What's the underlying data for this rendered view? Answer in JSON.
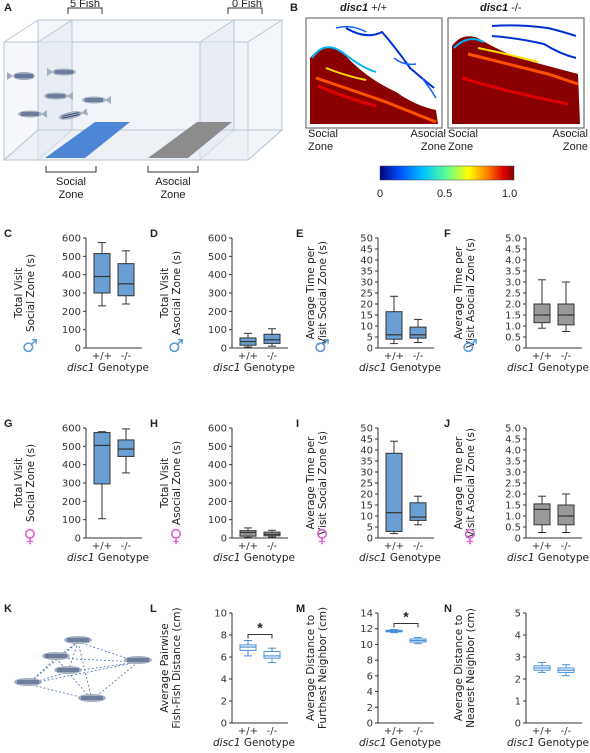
{
  "panels": {
    "A": "A",
    "B": "B",
    "C": "C",
    "D": "D",
    "E": "E",
    "F": "F",
    "G": "G",
    "H": "H",
    "I": "I",
    "J": "J",
    "K": "K",
    "L": "L",
    "M": "M",
    "N": "N"
  },
  "tank": {
    "five_fish": "5 Fish",
    "zero_fish": "0 Fish",
    "social_zone": "Social\nZone",
    "asocial_zone": "Asocial\nZone"
  },
  "heatmap": {
    "wt_title_gene": "disc1",
    "wt_title_geno": " +/+",
    "mut_title_gene": "disc1",
    "mut_title_geno": " -/-",
    "social": "Social\nZone",
    "asocial": "Asocial\nZone",
    "scale_ticks": [
      "0",
      "0.5",
      "1.0"
    ],
    "colors": [
      "#00007f",
      "#0050ff",
      "#00c8ff",
      "#60ff90",
      "#ffff00",
      "#ff8000",
      "#e00000",
      "#7f0000"
    ]
  },
  "xaxis_label_gene": "disc1",
  "xaxis_label_rest": " Genotype",
  "genotypes": [
    "+/+",
    "-/-"
  ],
  "male_symbol": "♂",
  "female_symbol": "♀",
  "male_color": "#5b9bd5",
  "female_color": "#e05fd6",
  "sig_marker": "*",
  "chart_data": [
    {
      "id": "C",
      "type": "box",
      "ylabel": "Total Visit\nSocial Zone (s)",
      "ylim": [
        0,
        600
      ],
      "yticks": [
        0,
        100,
        200,
        300,
        400,
        500,
        600
      ],
      "sex": "male",
      "color": "#6a9fd3",
      "boxes": [
        {
          "whislo": 230,
          "q1": 300,
          "med": 390,
          "q3": 515,
          "whishi": 575
        },
        {
          "whislo": 240,
          "q1": 285,
          "med": 350,
          "q3": 460,
          "whishi": 530
        }
      ]
    },
    {
      "id": "D",
      "type": "box",
      "ylabel": "Total Visit\nAsocial Zone (s)",
      "ylim": [
        0,
        600
      ],
      "yticks": [
        0,
        100,
        200,
        300,
        400,
        500,
        600
      ],
      "sex": "male",
      "color": "#6a9fd3",
      "boxes": [
        {
          "whislo": 5,
          "q1": 15,
          "med": 35,
          "q3": 55,
          "whishi": 80
        },
        {
          "whislo": 10,
          "q1": 25,
          "med": 45,
          "q3": 75,
          "whishi": 105
        }
      ]
    },
    {
      "id": "E",
      "type": "box",
      "ylabel": "Average Time per\nVisit Social Zone (s)",
      "ylim": [
        0,
        50
      ],
      "yticks": [
        0,
        5,
        10,
        15,
        20,
        25,
        30,
        35,
        40,
        45,
        50
      ],
      "sex": "male",
      "color": "#6a9fd3",
      "boxes": [
        {
          "whislo": 2,
          "q1": 4,
          "med": 6,
          "q3": 16.5,
          "whishi": 23.5
        },
        {
          "whislo": 2.5,
          "q1": 4.5,
          "med": 6,
          "q3": 9.5,
          "whishi": 13
        }
      ]
    },
    {
      "id": "F",
      "type": "box",
      "ylabel": "Average Time per\nVisit Asocial Zone (s)",
      "ylim": [
        0,
        5
      ],
      "yticks": [
        "0",
        "0.5",
        "1.0",
        "1.5",
        "2.0",
        "2.5",
        "3.0",
        "3.5",
        "4.0",
        "4.5",
        "5.0"
      ],
      "sex": "male",
      "color": "#999999",
      "boxes": [
        {
          "whislo": 0.9,
          "q1": 1.15,
          "med": 1.5,
          "q3": 2.0,
          "whishi": 3.1
        },
        {
          "whislo": 0.75,
          "q1": 1.05,
          "med": 1.5,
          "q3": 2.0,
          "whishi": 3.0
        }
      ]
    },
    {
      "id": "G",
      "type": "box",
      "ylabel": "Total Visit\nSocial Zone (s)",
      "ylim": [
        0,
        600
      ],
      "yticks": [
        0,
        100,
        200,
        300,
        400,
        500,
        600
      ],
      "sex": "female",
      "color": "#6a9fd3",
      "boxes": [
        {
          "whislo": 105,
          "q1": 295,
          "med": 505,
          "q3": 575,
          "whishi": 580
        },
        {
          "whislo": 355,
          "q1": 445,
          "med": 485,
          "q3": 535,
          "whishi": 595
        }
      ]
    },
    {
      "id": "H",
      "type": "box",
      "ylabel": "Total Visit\nAsocial Zone (s)",
      "ylim": [
        0,
        600
      ],
      "yticks": [
        0,
        100,
        200,
        300,
        400,
        500,
        600
      ],
      "sex": "female",
      "color": "#999999",
      "boxes": [
        {
          "whislo": 3,
          "q1": 10,
          "med": 30,
          "q3": 40,
          "whishi": 55
        },
        {
          "whislo": 5,
          "q1": 12,
          "med": 20,
          "q3": 32,
          "whishi": 42
        }
      ]
    },
    {
      "id": "I",
      "type": "box",
      "ylabel": "Average Time per\nVisit Social Zone (s)",
      "ylim": [
        0,
        50
      ],
      "yticks": [
        0,
        5,
        10,
        15,
        20,
        25,
        30,
        35,
        40,
        45,
        50
      ],
      "sex": "female",
      "color": "#6a9fd3",
      "boxes": [
        {
          "whislo": 2,
          "q1": 3,
          "med": 11.5,
          "q3": 38.5,
          "whishi": 44
        },
        {
          "whislo": 6,
          "q1": 8,
          "med": 9.5,
          "q3": 16,
          "whishi": 19
        }
      ]
    },
    {
      "id": "J",
      "type": "box",
      "ylabel": "Average Time per\nVisit Asocial Zone (s)",
      "ylim": [
        0,
        5
      ],
      "yticks": [
        "0",
        "0.5",
        "1.0",
        "1.5",
        "2.0",
        "2.5",
        "3.0",
        "3.5",
        "4.0",
        "4.5",
        "5.0"
      ],
      "sex": "female",
      "color": "#999999",
      "boxes": [
        {
          "whislo": 0.25,
          "q1": 0.6,
          "med": 1.3,
          "q3": 1.55,
          "whishi": 1.9
        },
        {
          "whislo": 0.25,
          "q1": 0.6,
          "med": 1.0,
          "q3": 1.5,
          "whishi": 2.0
        }
      ]
    },
    {
      "id": "L",
      "type": "box",
      "ylabel": "Average Pairwise\nFish-Fish Distance (cm)",
      "ylim": [
        0,
        10
      ],
      "yticks": [
        0,
        2,
        4,
        6,
        8,
        10
      ],
      "sex": "none",
      "color": "#ffffff",
      "edge": "#4a90d9",
      "boxes": [
        {
          "whislo": 6.1,
          "q1": 6.6,
          "med": 6.9,
          "q3": 7.1,
          "whishi": 7.5
        },
        {
          "whislo": 5.5,
          "q1": 5.9,
          "med": 6.1,
          "q3": 6.5,
          "whishi": 6.8
        }
      ],
      "sig": true
    },
    {
      "id": "M",
      "type": "box",
      "ylabel": "Average Distance to\nFurthest Neighbor (cm)",
      "ylim": [
        0,
        14
      ],
      "yticks": [
        0,
        2,
        4,
        6,
        8,
        10,
        12,
        14
      ],
      "sex": "none",
      "color": "#ffffff",
      "edge": "#4a90d9",
      "boxes": [
        {
          "whislo": 11.5,
          "q1": 11.6,
          "med": 11.7,
          "q3": 11.8,
          "whishi": 11.9
        },
        {
          "whislo": 10.1,
          "q1": 10.3,
          "med": 10.5,
          "q3": 10.7,
          "whishi": 10.9
        }
      ],
      "sig": true
    },
    {
      "id": "N",
      "type": "box",
      "ylabel": "Average Distance to\nNearest Neighbor (cm)",
      "ylim": [
        0,
        5
      ],
      "yticks": [
        0,
        1,
        2,
        3,
        4,
        5
      ],
      "sex": "none",
      "color": "#ffffff",
      "edge": "#4a90d9",
      "boxes": [
        {
          "whislo": 2.3,
          "q1": 2.4,
          "med": 2.5,
          "q3": 2.6,
          "whishi": 2.75
        },
        {
          "whislo": 2.15,
          "q1": 2.3,
          "med": 2.4,
          "q3": 2.5,
          "whishi": 2.65
        }
      ]
    }
  ]
}
